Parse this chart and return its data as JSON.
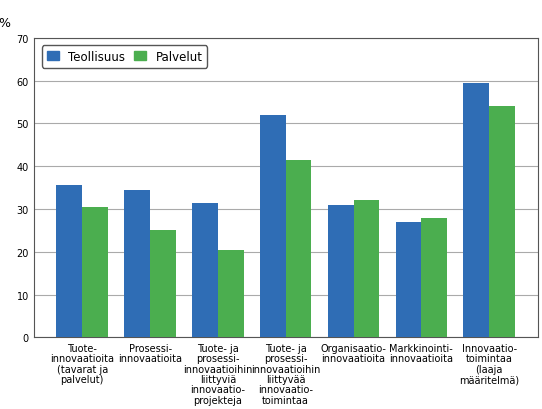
{
  "categories": [
    "Tuote-\ninnovaatioita\n(tavarat ja\npalvelut)",
    "Prosessi-\ninnovaatioita",
    "Tuote- ja\nprosessi-\ninnovaatioihin\nliittyviä\ninnovaatio-\nprojekteja",
    "Tuote- ja\nprosessi-\ninnovaatioihin\nliittyvää\ninnovaatio-\ntoimintaa",
    "Organisaatio-\ninnovaatioita",
    "Markkinointi-\ninnovaatioita",
    "Innovaatio-\ntoimintaa\n(laaja\nmääritelmä)"
  ],
  "teollisuus": [
    35.5,
    34.5,
    31.5,
    52.0,
    31.0,
    27.0,
    59.5
  ],
  "palvelut": [
    30.5,
    25.0,
    20.5,
    41.5,
    32.0,
    28.0,
    54.0
  ],
  "color_teollisuus": "#2F6DB5",
  "color_palvelut": "#4BAE4F",
  "ylabel": "%",
  "ylim": [
    0,
    70
  ],
  "yticks": [
    0,
    10,
    20,
    30,
    40,
    50,
    60,
    70
  ],
  "legend_teollisuus": "Teollisuus",
  "legend_palvelut": "Palvelut",
  "bar_width": 0.38,
  "tick_fontsize": 7.0,
  "legend_fontsize": 8.5,
  "ylabel_fontsize": 9,
  "background_color": "#ffffff",
  "grid_color": "#aaaaaa",
  "spine_color": "#555555"
}
